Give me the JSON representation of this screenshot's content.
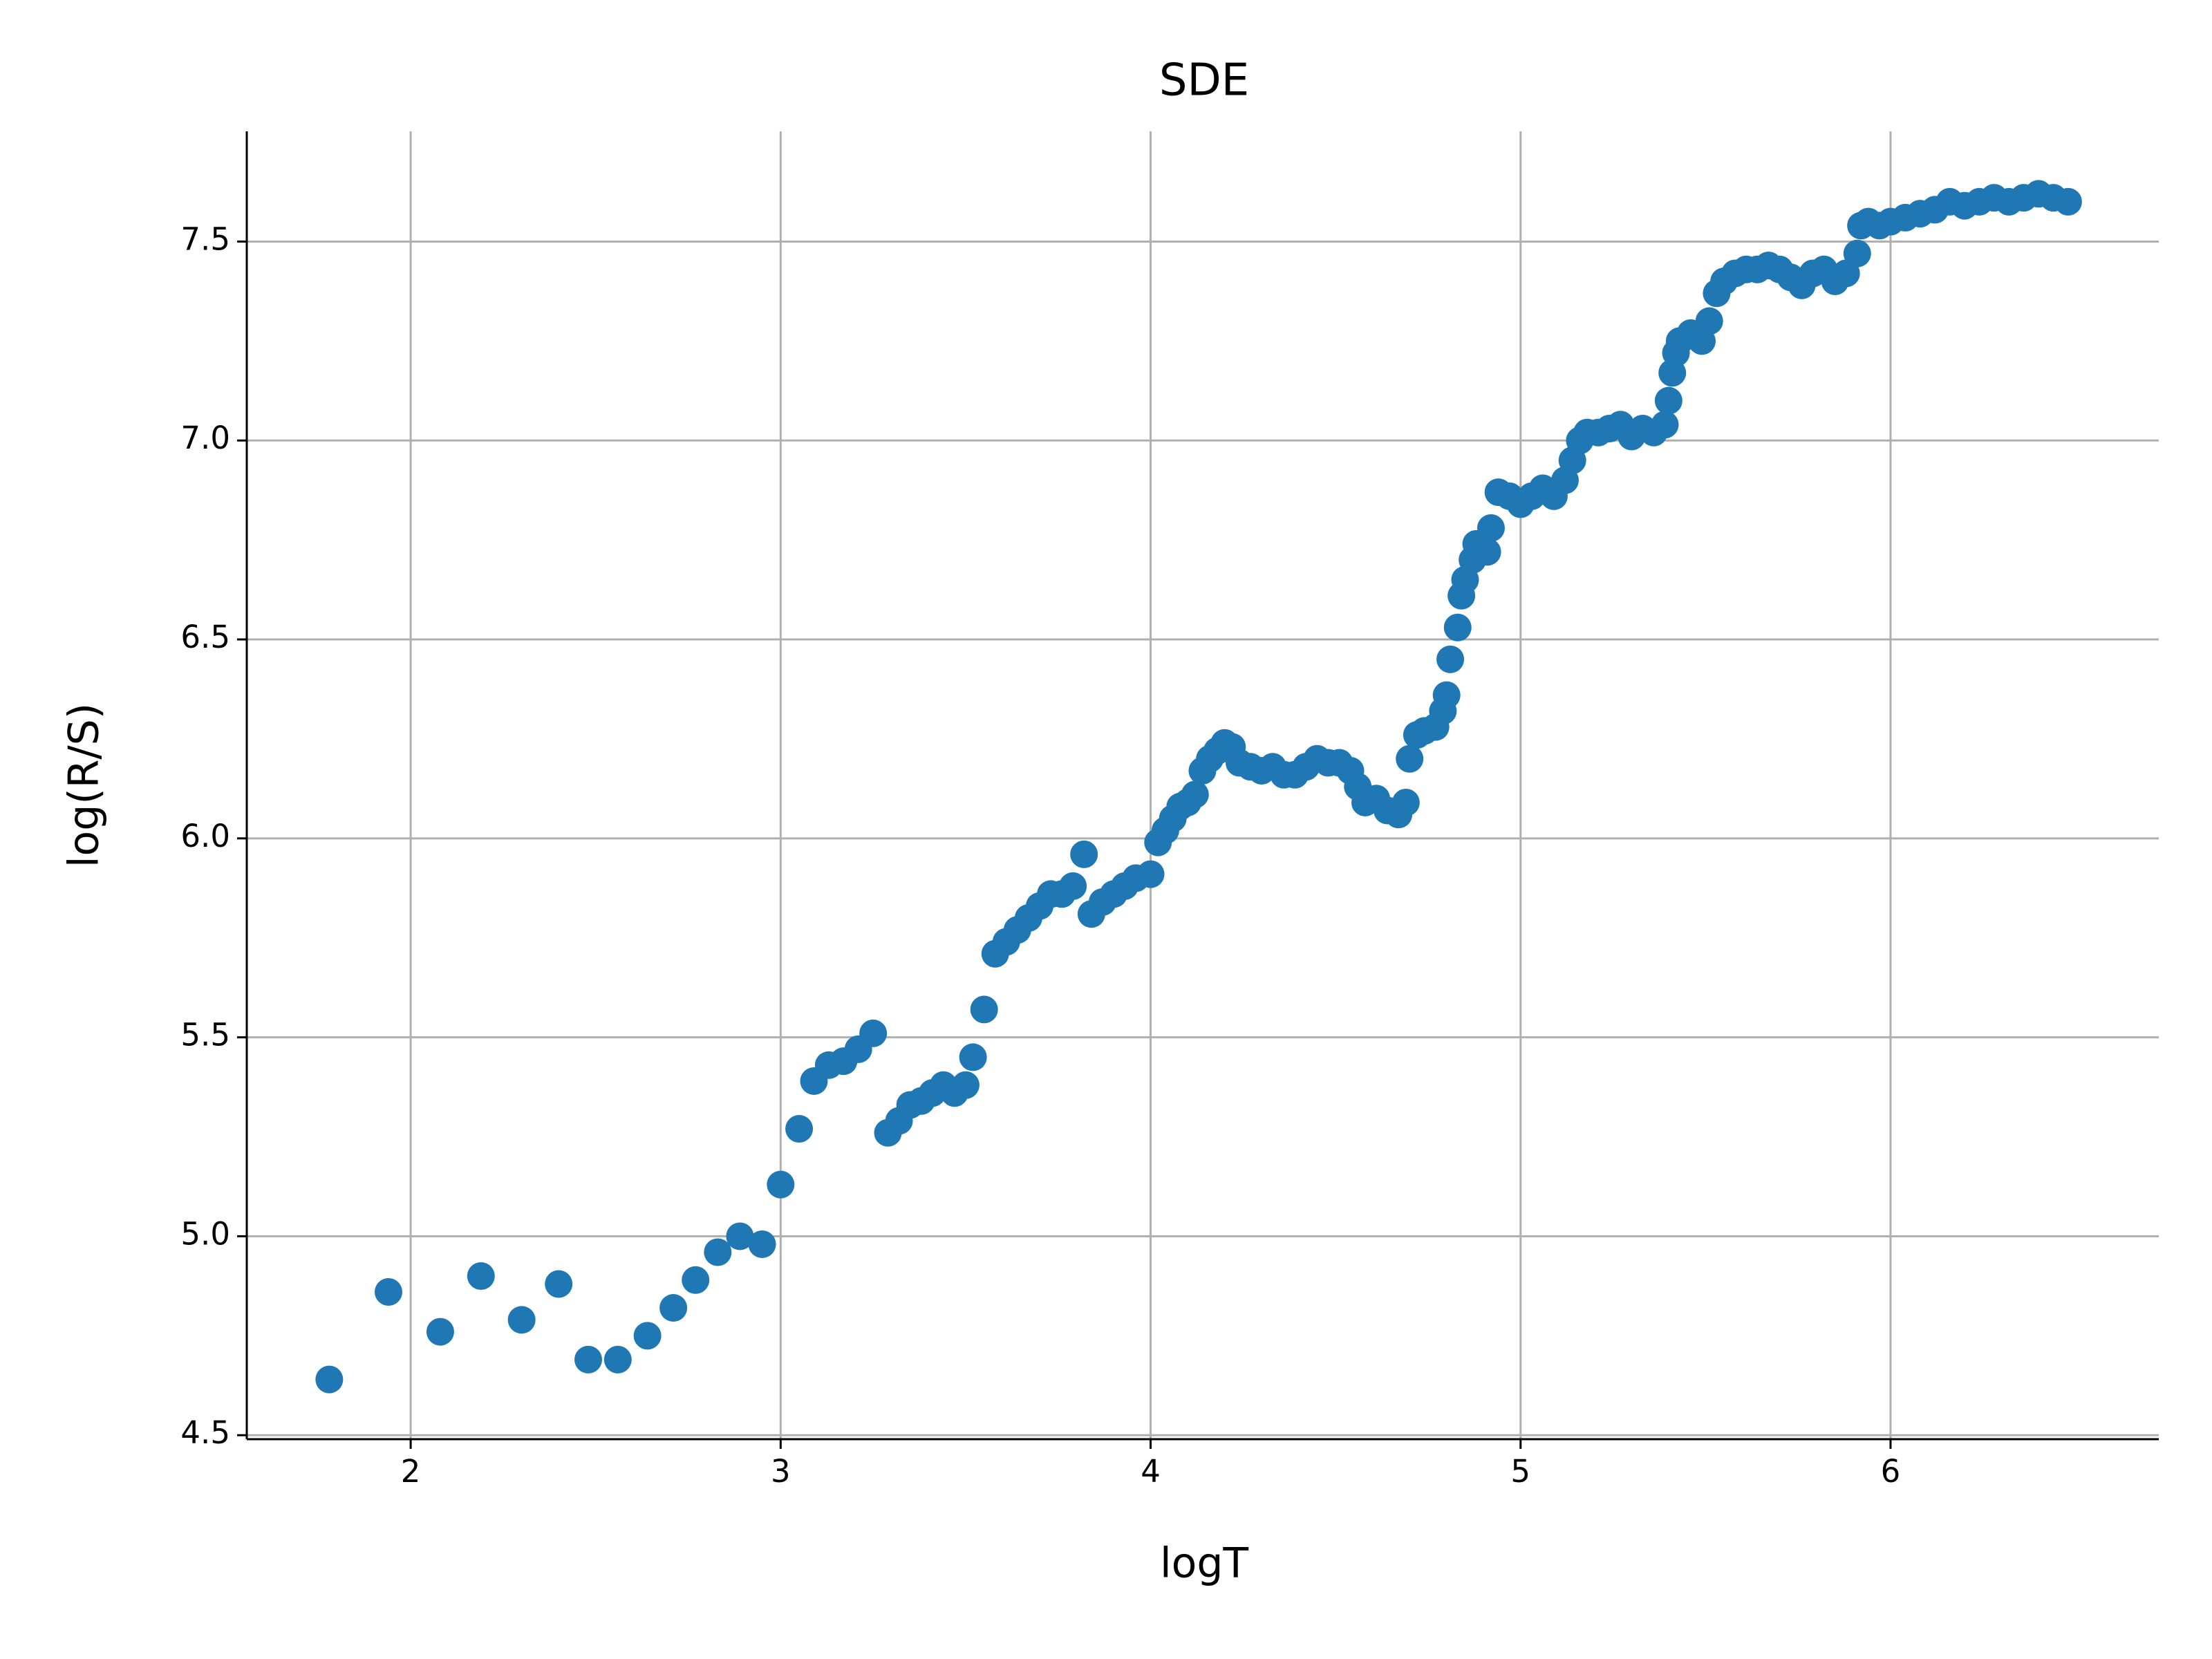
{
  "chart_data": {
    "type": "scatter",
    "title": "SDE",
    "x_label": "logT",
    "y_label": "log(R/S)",
    "color": "#1f77b4",
    "grid": true,
    "xlim": [
      1.557,
      6.725
    ],
    "ylim": [
      4.49,
      7.777
    ],
    "xticks": [
      2,
      3,
      4,
      5,
      6
    ],
    "yticks": [
      4.5,
      {
        "value": 5,
        "label": "5.0"
      },
      5.5,
      {
        "value": 6,
        "label": "6.0"
      },
      6.5,
      {
        "value": 7,
        "label": "7.0"
      },
      7.5
    ],
    "x": [
      1.78,
      1.94,
      2.08,
      2.19,
      2.3,
      2.4,
      2.48,
      2.56,
      2.64,
      2.71,
      2.77,
      2.83,
      2.89,
      2.95,
      3.0,
      3.05,
      3.09,
      3.13,
      3.17,
      3.21,
      3.25,
      3.29,
      3.32,
      3.35,
      3.38,
      3.41,
      3.44,
      3.47,
      3.5,
      3.52,
      3.55,
      3.58,
      3.61,
      3.64,
      3.67,
      3.7,
      3.73,
      3.76,
      3.79,
      3.82,
      3.84,
      3.87,
      3.9,
      3.93,
      3.96,
      4.0,
      4.02,
      4.04,
      4.06,
      4.08,
      4.1,
      4.12,
      4.14,
      4.16,
      4.18,
      4.2,
      4.22,
      4.24,
      4.27,
      4.3,
      4.33,
      4.36,
      4.39,
      4.42,
      4.45,
      4.48,
      4.51,
      4.54,
      4.56,
      4.58,
      4.61,
      4.64,
      4.67,
      4.69,
      4.7,
      4.72,
      4.74,
      4.77,
      4.79,
      4.8,
      4.81,
      4.83,
      4.84,
      4.85,
      4.87,
      4.88,
      4.91,
      4.92,
      4.94,
      4.97,
      5.0,
      5.03,
      5.06,
      5.09,
      5.12,
      5.14,
      5.16,
      5.18,
      5.21,
      5.24,
      5.27,
      5.3,
      5.33,
      5.36,
      5.39,
      5.4,
      5.41,
      5.42,
      5.43,
      5.46,
      5.49,
      5.51,
      5.53,
      5.55,
      5.58,
      5.61,
      5.64,
      5.67,
      5.7,
      5.73,
      5.76,
      5.79,
      5.82,
      5.85,
      5.88,
      5.91,
      5.92,
      5.94,
      5.97,
      6.0,
      6.04,
      6.08,
      6.12,
      6.16,
      6.2,
      6.24,
      6.28,
      6.32,
      6.36,
      6.4,
      6.44,
      6.48
    ],
    "values": [
      4.64,
      4.86,
      4.76,
      4.9,
      4.79,
      4.88,
      4.69,
      4.69,
      4.75,
      4.82,
      4.89,
      4.96,
      5.0,
      4.98,
      5.13,
      5.27,
      5.39,
      5.43,
      5.44,
      5.47,
      5.51,
      5.26,
      5.29,
      5.33,
      5.34,
      5.36,
      5.38,
      5.36,
      5.38,
      5.45,
      5.57,
      5.71,
      5.74,
      5.77,
      5.8,
      5.83,
      5.86,
      5.86,
      5.88,
      5.96,
      5.81,
      5.84,
      5.86,
      5.88,
      5.9,
      5.91,
      5.99,
      6.02,
      6.05,
      6.08,
      6.09,
      6.11,
      6.17,
      6.2,
      6.22,
      6.24,
      6.23,
      6.19,
      6.18,
      6.17,
      6.18,
      6.16,
      6.16,
      6.18,
      6.2,
      6.19,
      6.19,
      6.17,
      6.13,
      6.09,
      6.1,
      6.07,
      6.06,
      6.09,
      6.2,
      6.26,
      6.27,
      6.28,
      6.32,
      6.36,
      6.45,
      6.53,
      6.61,
      6.65,
      6.7,
      6.74,
      6.72,
      6.78,
      6.87,
      6.86,
      6.84,
      6.86,
      6.88,
      6.86,
      6.9,
      6.95,
      7.0,
      7.02,
      7.02,
      7.03,
      7.04,
      7.01,
      7.03,
      7.02,
      7.04,
      7.1,
      7.17,
      7.22,
      7.25,
      7.27,
      7.25,
      7.3,
      7.37,
      7.4,
      7.42,
      7.43,
      7.43,
      7.44,
      7.43,
      7.41,
      7.39,
      7.42,
      7.43,
      7.4,
      7.42,
      7.47,
      7.54,
      7.55,
      7.54,
      7.55,
      7.56,
      7.57,
      7.58,
      7.6,
      7.59,
      7.6,
      7.61,
      7.6,
      7.61,
      7.62,
      7.61,
      7.6
    ]
  }
}
